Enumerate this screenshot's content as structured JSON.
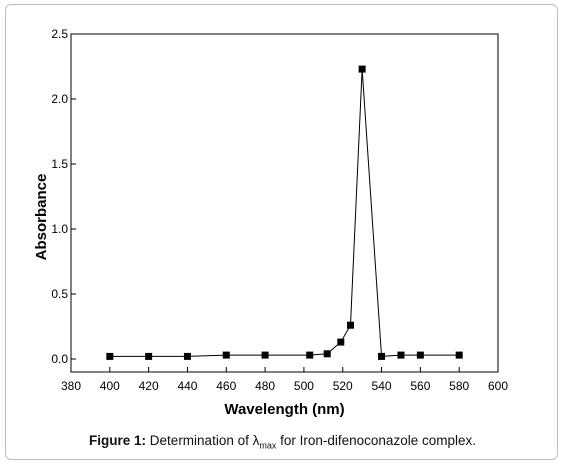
{
  "chart_data": {
    "type": "line",
    "xlabel": "Wavelength (nm)",
    "ylabel": "Absorbance",
    "xlim": [
      380,
      600
    ],
    "ylim": [
      -0.1,
      2.5
    ],
    "xticks": [
      380,
      400,
      420,
      440,
      460,
      480,
      500,
      520,
      540,
      560,
      580,
      600
    ],
    "xtick_labels": [
      "380",
      "400",
      "420",
      "440",
      "460",
      "480",
      "500",
      "520",
      "540",
      "560",
      "580",
      "600"
    ],
    "yticks": [
      0.0,
      0.5,
      1.0,
      1.5,
      2.0,
      2.5
    ],
    "ytick_labels": [
      "0.0",
      "0.5",
      "1.0",
      "1.5",
      "2.0",
      "2.5"
    ],
    "grid": false,
    "marker": "square",
    "series": [
      {
        "x": [
          400,
          420,
          440,
          460,
          480,
          503,
          512,
          519,
          524,
          530,
          540,
          550,
          560,
          580
        ],
        "y": [
          0.02,
          0.02,
          0.02,
          0.03,
          0.03,
          0.03,
          0.04,
          0.13,
          0.26,
          2.23,
          0.02,
          0.03,
          0.03,
          0.03
        ]
      }
    ],
    "color": "#000000"
  },
  "caption": {
    "label": "Figure 1:",
    "text_before": "Determination of λ",
    "subscript": "max",
    "text_after": " for Iron-difenoconazole complex."
  }
}
